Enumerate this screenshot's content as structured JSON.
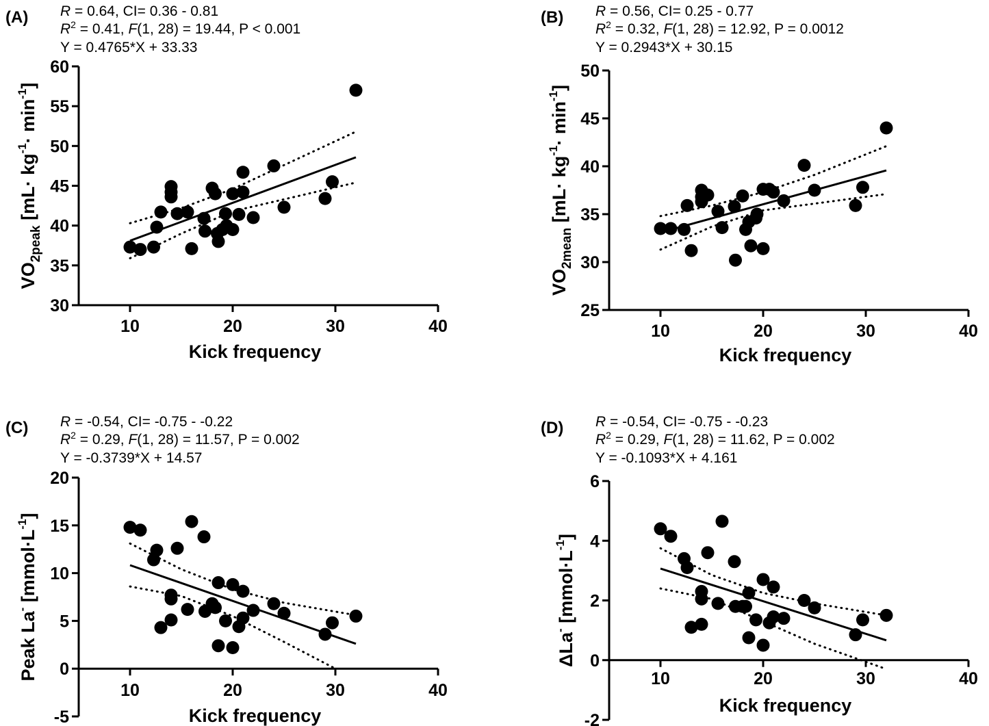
{
  "chart_data": [
    {
      "type": "scatter",
      "panel": "(A)",
      "stats": {
        "line1": {
          "r": "R",
          "text": " = 0.64, CI= 0.36 - 0.81"
        },
        "line2": {
          "r2": "R",
          "sup": "2",
          "mid": " = 0.41, ",
          "f": "F",
          "text": "(1, 28) = 19.44, P < 0.001"
        },
        "line3": "Y = 0.4765*X + 33.33"
      },
      "xlabel": "Kick frequency",
      "ylabel": {
        "main": "VO",
        "sub": "2peak",
        "rest": " [mL· kg",
        "sup1": "-1",
        "mid": "· min",
        "sup2": "-1",
        "end": "]"
      },
      "xlim": [
        5,
        40
      ],
      "ylim": [
        30,
        60
      ],
      "xticks": [
        10,
        20,
        30,
        40
      ],
      "yticks": [
        30,
        35,
        40,
        45,
        50,
        55,
        60
      ],
      "regression": {
        "slope": 0.4765,
        "intercept": 33.33,
        "x_range": [
          10,
          32
        ]
      },
      "ci_upper": [
        [
          10,
          40.3
        ],
        [
          15,
          42.2
        ],
        [
          20,
          44.6
        ],
        [
          25,
          47.6
        ],
        [
          32,
          51.8
        ]
      ],
      "ci_lower": [
        [
          10,
          35.9
        ],
        [
          15,
          39.0
        ],
        [
          20,
          41.8
        ],
        [
          25,
          43.3
        ],
        [
          32,
          45.4
        ]
      ],
      "points": [
        [
          10,
          37.3
        ],
        [
          11,
          37.0
        ],
        [
          12.3,
          37.3
        ],
        [
          12.6,
          39.8
        ],
        [
          13,
          41.7
        ],
        [
          14,
          44.9
        ],
        [
          14,
          44.2
        ],
        [
          14,
          43.6
        ],
        [
          14.6,
          41.5
        ],
        [
          15.6,
          41.7
        ],
        [
          16,
          37.1
        ],
        [
          17.2,
          40.9
        ],
        [
          17.3,
          39.3
        ],
        [
          18,
          44.7
        ],
        [
          18.3,
          44.0
        ],
        [
          18.5,
          39.0
        ],
        [
          18.6,
          38.0
        ],
        [
          19,
          39.5
        ],
        [
          19.3,
          41.5
        ],
        [
          19.4,
          40.0
        ],
        [
          20,
          39.5
        ],
        [
          20,
          44.0
        ],
        [
          20.6,
          41.4
        ],
        [
          21,
          44.2
        ],
        [
          21,
          46.7
        ],
        [
          22,
          41.0
        ],
        [
          24,
          47.5
        ],
        [
          25,
          42.3
        ],
        [
          29,
          43.4
        ],
        [
          29.7,
          45.5
        ],
        [
          32,
          57.0
        ]
      ]
    },
    {
      "type": "scatter",
      "panel": "(B)",
      "stats": {
        "line1": {
          "r": "R",
          "text": " = 0.56, CI= 0.25 - 0.77"
        },
        "line2": {
          "r2": "R",
          "sup": "2",
          "mid": " = 0.32, ",
          "f": "F",
          "text": "(1, 28) = 12.92, P = 0.0012"
        },
        "line3": "Y = 0.2943*X + 30.15"
      },
      "xlabel": "Kick frequency",
      "ylabel": {
        "main": "VO",
        "sub": "2mean",
        "rest": " [mL· kg",
        "sup1": "-1",
        "mid": "· min",
        "sup2": "-1",
        "end": "]"
      },
      "xlim": [
        5,
        40
      ],
      "ylim": [
        25,
        50
      ],
      "xticks": [
        10,
        20,
        30,
        40
      ],
      "yticks": [
        25,
        30,
        35,
        40,
        45,
        50
      ],
      "regression": {
        "slope": 0.2943,
        "intercept": 30.15,
        "x_range": [
          10,
          32
        ]
      },
      "ci_upper": [
        [
          10,
          34.8
        ],
        [
          15,
          35.9
        ],
        [
          20,
          37.3
        ],
        [
          25,
          39.1
        ],
        [
          32,
          42.1
        ]
      ],
      "ci_lower": [
        [
          10,
          31.3
        ],
        [
          15,
          33.7
        ],
        [
          20,
          35.4
        ],
        [
          25,
          36.1
        ],
        [
          32,
          37.1
        ]
      ],
      "points": [
        [
          10,
          33.5
        ],
        [
          11,
          33.5
        ],
        [
          12.3,
          33.4
        ],
        [
          12.6,
          35.9
        ],
        [
          13,
          31.2
        ],
        [
          14,
          37.5
        ],
        [
          14,
          36.8
        ],
        [
          14,
          36.3
        ],
        [
          14.6,
          37.0
        ],
        [
          15.6,
          35.3
        ],
        [
          16,
          33.6
        ],
        [
          17.2,
          35.8
        ],
        [
          17.3,
          30.2
        ],
        [
          18,
          36.9
        ],
        [
          18.3,
          33.4
        ],
        [
          18.6,
          34.2
        ],
        [
          18.8,
          31.7
        ],
        [
          19.3,
          34.6
        ],
        [
          19.4,
          35.0
        ],
        [
          20,
          31.4
        ],
        [
          20,
          37.6
        ],
        [
          20.6,
          37.6
        ],
        [
          21,
          37.3
        ],
        [
          22,
          36.4
        ],
        [
          24,
          40.1
        ],
        [
          25,
          37.5
        ],
        [
          29,
          35.9
        ],
        [
          29.7,
          37.8
        ],
        [
          32,
          44.0
        ]
      ]
    },
    {
      "type": "scatter",
      "panel": "(C)",
      "stats": {
        "line1": {
          "r": "R",
          "text": " = -0.54, CI= -0.75 - -0.22"
        },
        "line2": {
          "r2": "R",
          "sup": "2",
          "mid": " = 0.29, ",
          "f": "F",
          "text": "(1, 28) = 11.57, P = 0.002"
        },
        "line3": "Y = -0.3739*X + 14.57"
      },
      "xlabel": "Kick frequency",
      "ylabel": {
        "main": "Peak La",
        "sup1": "-",
        "rest": " [mmol·L",
        "sup2": "-1",
        "end": "]"
      },
      "xlim": [
        5,
        40
      ],
      "ylim": [
        -5,
        20
      ],
      "xticks": [
        10,
        20,
        30,
        40
      ],
      "yticks": [
        -5,
        0,
        5,
        10,
        15,
        20
      ],
      "regression": {
        "slope": -0.3739,
        "intercept": 14.57,
        "x_range": [
          10,
          32
        ]
      },
      "ci_upper": [
        [
          10,
          13.1
        ],
        [
          15,
          10.4
        ],
        [
          20,
          8.3
        ],
        [
          25,
          6.9
        ],
        [
          32,
          5.6
        ]
      ],
      "ci_lower": [
        [
          10,
          8.6
        ],
        [
          15,
          7.6
        ],
        [
          20,
          5.5
        ],
        [
          25,
          2.8
        ],
        [
          30,
          0.0
        ]
      ],
      "points": [
        [
          10,
          14.8
        ],
        [
          11,
          14.5
        ],
        [
          12.3,
          11.4
        ],
        [
          12.6,
          12.4
        ],
        [
          13,
          4.3
        ],
        [
          14,
          7.7
        ],
        [
          14,
          7.3
        ],
        [
          14,
          5.1
        ],
        [
          14.6,
          12.6
        ],
        [
          15.6,
          6.2
        ],
        [
          16,
          15.4
        ],
        [
          17.2,
          13.8
        ],
        [
          17.3,
          6.0
        ],
        [
          18,
          6.8
        ],
        [
          18.3,
          6.4
        ],
        [
          18.6,
          2.4
        ],
        [
          18.6,
          9.0
        ],
        [
          19.3,
          5.0
        ],
        [
          20,
          2.2
        ],
        [
          20,
          8.8
        ],
        [
          20.6,
          4.4
        ],
        [
          21,
          8.1
        ],
        [
          21,
          5.3
        ],
        [
          22,
          6.1
        ],
        [
          24,
          6.8
        ],
        [
          25,
          5.8
        ],
        [
          29,
          3.6
        ],
        [
          29.7,
          4.8
        ],
        [
          32,
          5.5
        ]
      ]
    },
    {
      "type": "scatter",
      "panel": "(D)",
      "stats": {
        "line1": {
          "r": "R",
          "text": " = -0.54, CI= -0.75 - -0.23"
        },
        "line2": {
          "r2": "R",
          "sup": "2",
          "mid": " = 0.29, ",
          "f": "F",
          "text": "(1, 28) = 11.62, P = 0.002"
        },
        "line3": "Y = -0.1093*X + 4.161"
      },
      "xlabel": "Kick frequency",
      "ylabel": {
        "main": "ΔLa",
        "sup1": "-",
        "rest": " [mmol·L",
        "sup2": "-1",
        "end": "]"
      },
      "xlim": [
        5,
        40
      ],
      "ylim": [
        -2,
        6
      ],
      "xticks": [
        10,
        20,
        30,
        40
      ],
      "yticks": [
        -2,
        0,
        2,
        4,
        6
      ],
      "regression": {
        "slope": -0.1093,
        "intercept": 4.161,
        "x_range": [
          10,
          32
        ]
      },
      "ci_upper": [
        [
          10,
          3.75
        ],
        [
          15,
          2.85
        ],
        [
          20,
          2.25
        ],
        [
          25,
          1.9
        ],
        [
          32,
          1.5
        ]
      ],
      "ci_lower": [
        [
          10,
          2.4
        ],
        [
          15,
          2.05
        ],
        [
          20,
          1.3
        ],
        [
          25,
          0.55
        ],
        [
          32,
          -0.3
        ]
      ],
      "points": [
        [
          10,
          4.4
        ],
        [
          11,
          4.15
        ],
        [
          12.3,
          3.4
        ],
        [
          12.6,
          3.1
        ],
        [
          13,
          1.1
        ],
        [
          14,
          2.3
        ],
        [
          14,
          2.05
        ],
        [
          14,
          1.2
        ],
        [
          14.6,
          3.6
        ],
        [
          15.6,
          1.9
        ],
        [
          16,
          4.65
        ],
        [
          17.2,
          3.3
        ],
        [
          17.3,
          1.8
        ],
        [
          18,
          1.8
        ],
        [
          18.3,
          1.8
        ],
        [
          18.6,
          2.25
        ],
        [
          18.6,
          0.75
        ],
        [
          19.3,
          1.35
        ],
        [
          20,
          0.5
        ],
        [
          20,
          2.7
        ],
        [
          20.6,
          1.25
        ],
        [
          21,
          1.45
        ],
        [
          21,
          2.45
        ],
        [
          22,
          1.4
        ],
        [
          24,
          2.0
        ],
        [
          25,
          1.75
        ],
        [
          29,
          0.85
        ],
        [
          29.7,
          1.35
        ],
        [
          32,
          1.5
        ]
      ]
    }
  ]
}
